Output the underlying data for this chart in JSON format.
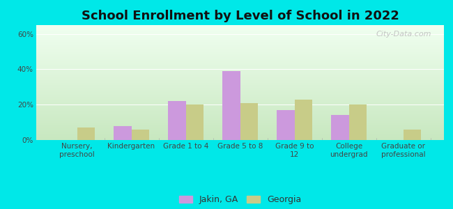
{
  "title": "School Enrollment by Level of School in 2022",
  "categories": [
    "Nursery,\npreschool",
    "Kindergarten",
    "Grade 1 to 4",
    "Grade 5 to 8",
    "Grade 9 to\n12",
    "College\nundergrad",
    "Graduate or\nprofessional"
  ],
  "jakin_values": [
    0,
    8,
    22,
    39,
    17,
    14,
    0
  ],
  "georgia_values": [
    7,
    6,
    20,
    21,
    23,
    20,
    6
  ],
  "jakin_color": "#cc99dd",
  "georgia_color": "#c8cc88",
  "jakin_label": "Jakin, GA",
  "georgia_label": "Georgia",
  "ylim": [
    0,
    65
  ],
  "yticks": [
    0,
    20,
    40,
    60
  ],
  "ytick_labels": [
    "0%",
    "20%",
    "40%",
    "60%"
  ],
  "background_color": "#00e8e8",
  "grad_top": "#e8f4e0",
  "grad_bottom": "#f8fff8",
  "watermark": "City-Data.com",
  "title_fontsize": 13,
  "tick_fontsize": 7.5,
  "legend_fontsize": 9,
  "bar_width": 0.33
}
